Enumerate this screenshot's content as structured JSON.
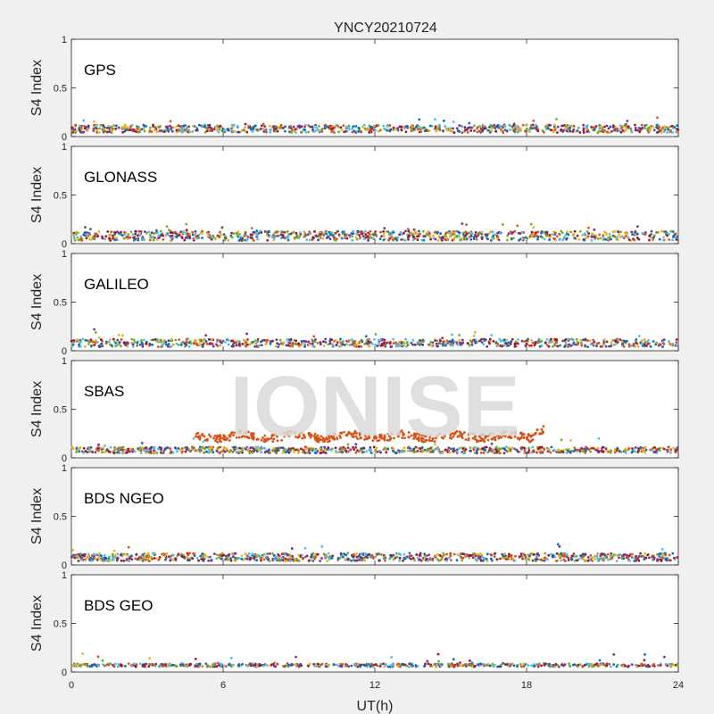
{
  "chart_data": {
    "type": "scatter",
    "title": "YNCY20210724",
    "xlabel": "UT(h)",
    "ylabel": "S4 Index",
    "xlim": [
      0,
      24
    ],
    "ylim": [
      0,
      1
    ],
    "xticks": [
      "0",
      "6",
      "12",
      "18",
      "24"
    ],
    "yticks": [
      "0",
      "0.5",
      "1"
    ],
    "colors": [
      "#0072BD",
      "#D95319",
      "#EDB120",
      "#7E2F8E",
      "#77AC30",
      "#4DBEEE",
      "#A2142F"
    ],
    "panels": [
      {
        "label": "GPS",
        "baseline": 0.08,
        "spread": 0.05,
        "density": 900
      },
      {
        "label": "GLONASS",
        "baseline": 0.08,
        "spread": 0.06,
        "density": 900
      },
      {
        "label": "GALILEO",
        "baseline": 0.08,
        "spread": 0.05,
        "density": 800
      },
      {
        "label": "SBAS",
        "baseline": 0.08,
        "spread": 0.04,
        "density": 800,
        "highlight": {
          "color": "#D95319",
          "x": [
            4.9,
            18.7
          ],
          "level": 0.22
        }
      },
      {
        "label": "BDS NGEO",
        "baseline": 0.08,
        "spread": 0.05,
        "density": 900
      },
      {
        "label": "BDS GEO",
        "baseline": 0.07,
        "spread": 0.02,
        "density": 600
      }
    ],
    "grid": false
  },
  "watermark": "IONISE"
}
